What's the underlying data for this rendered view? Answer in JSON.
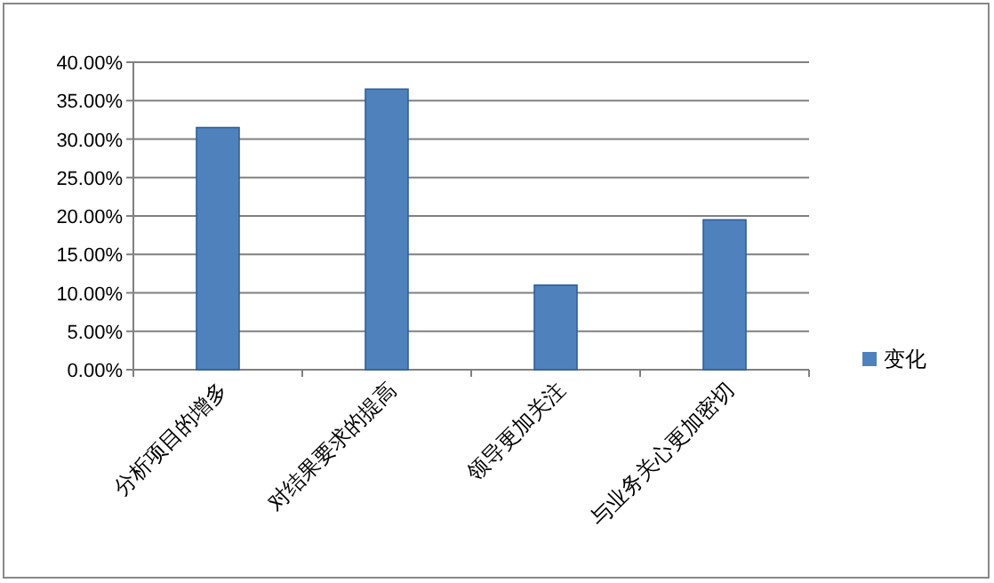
{
  "chart_data": {
    "type": "bar",
    "categories": [
      "分析项目的增多",
      "对结果要求的提高",
      "领导更加关注",
      "与业务关心更加密切"
    ],
    "series": [
      {
        "name": "变化",
        "color": "#4f81bd",
        "values": [
          31.5,
          36.5,
          11,
          19.5
        ]
      }
    ],
    "ylim": [
      0,
      40
    ],
    "yticks": [
      {
        "value": 0,
        "label": "0.00%"
      },
      {
        "value": 5,
        "label": "5.00%"
      },
      {
        "value": 10,
        "label": "10.00%"
      },
      {
        "value": 15,
        "label": "15.00%"
      },
      {
        "value": 20,
        "label": "20.00%"
      },
      {
        "value": 25,
        "label": "25.00%"
      },
      {
        "value": 30,
        "label": "30.00%"
      },
      {
        "value": 35,
        "label": "35.00%"
      },
      {
        "value": 40,
        "label": "40.00%"
      }
    ],
    "grid": "y",
    "legend": "right"
  }
}
